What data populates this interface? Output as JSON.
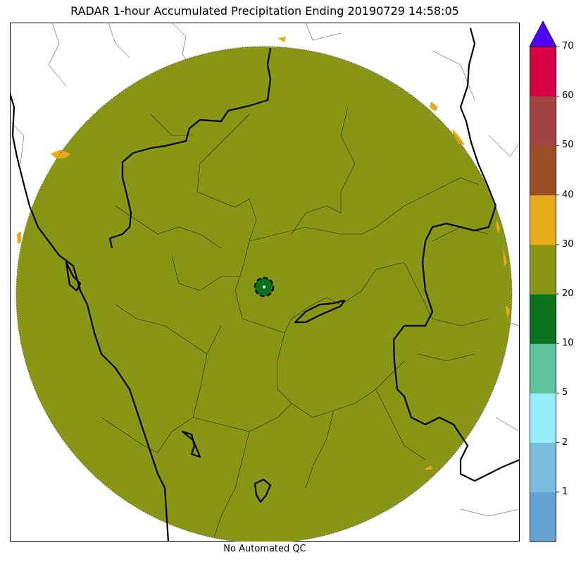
{
  "title": "RADAR 1-hour Accumulated Precipitation Ending 20190729 14:58:05",
  "footer": "No Automated QC",
  "colorbar": {
    "ticks": [
      "1",
      "2",
      "5",
      "10",
      "20",
      "30",
      "40",
      "50",
      "60",
      "70"
    ],
    "bands": [
      {
        "color": "#64a2d4"
      },
      {
        "color": "#79bde0"
      },
      {
        "color": "#96eefb"
      },
      {
        "color": "#5ec29a"
      },
      {
        "color": "#0b731c"
      },
      {
        "color": "#899515"
      },
      {
        "color": "#e8ab19"
      },
      {
        "color": "#9a4f27"
      },
      {
        "color": "#a34443"
      },
      {
        "color": "#d70043"
      }
    ],
    "extend_color": "#4f00ff"
  },
  "map": {
    "dominant_color": "#899515",
    "edge_speckle_color": "#e8ab19",
    "center_color": "#0b731c",
    "center_marker": "radar-site-icon",
    "range_ring_color": "#555555"
  }
}
